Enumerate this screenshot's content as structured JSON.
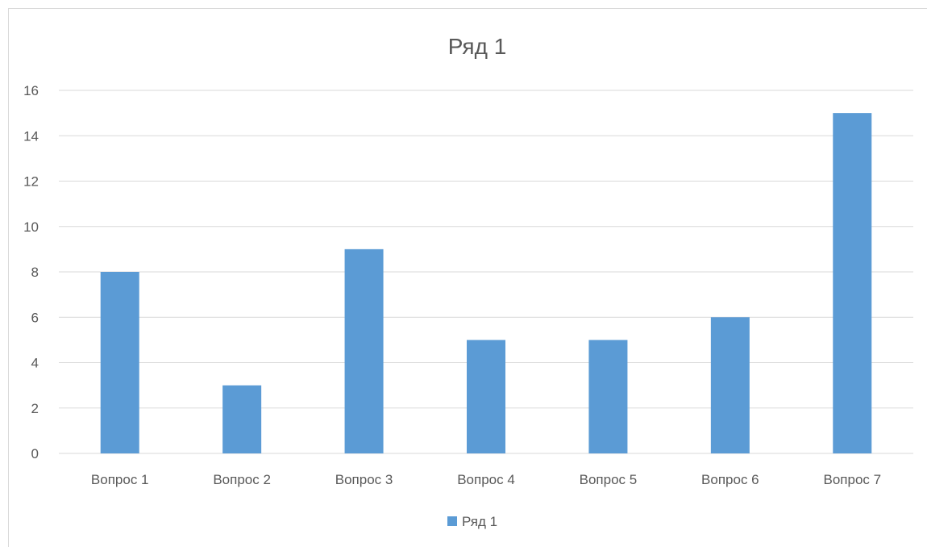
{
  "chart_data": {
    "type": "bar",
    "title": "Ряд 1",
    "categories": [
      "Вопрос 1",
      "Вопрос 2",
      "Вопрос 3",
      "Вопрос 4",
      "Вопрос 5",
      "Вопрос 6",
      "Вопрос 7"
    ],
    "series": [
      {
        "name": "Ряд 1",
        "values": [
          8,
          3,
          9,
          5,
          5,
          6,
          15
        ],
        "color": "#5b9bd5"
      }
    ],
    "ylim": [
      0,
      16
    ],
    "yticks": [
      0,
      2,
      4,
      6,
      8,
      10,
      12,
      14,
      16
    ],
    "ytick_labels": [
      "0",
      "2",
      "4",
      "6",
      "8",
      "10",
      "12",
      "14",
      "16"
    ],
    "xlabel": "",
    "ylabel": "",
    "grid": true,
    "grid_color": "#d9d9d9",
    "legend_position": "bottom"
  }
}
